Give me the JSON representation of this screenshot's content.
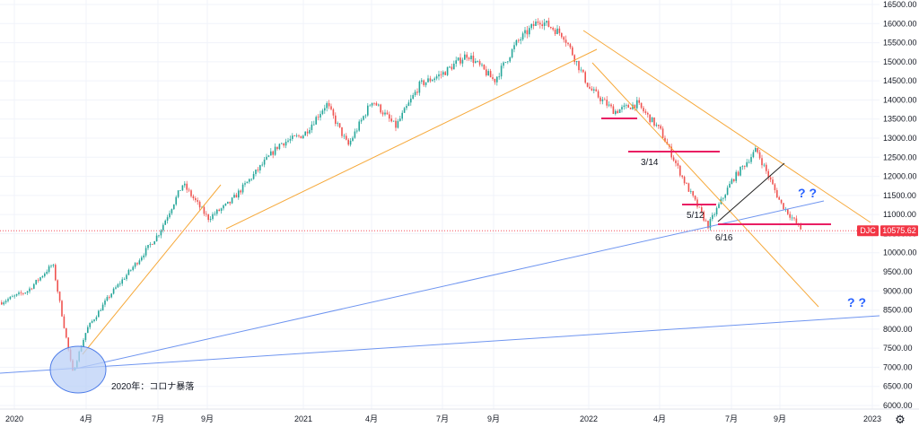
{
  "chart_data": {
    "type": "candlestick",
    "symbol": "DJC",
    "last_price": "10575.62",
    "colors": {
      "up": "#26a69a",
      "down": "#ef5350",
      "trend_orange": "#f6a93b",
      "trend_blue": "#6f95f0",
      "support_red": "#e91e63",
      "black_line": "#222222",
      "price_line": "#f23645",
      "grid": "#f0f3fa",
      "qmark": "#2962ff",
      "circle_fill": "#bbd0f7",
      "circle_stroke": "#4c7be8"
    },
    "y_axis": {
      "ticks": [
        "16500.00",
        "16000.00",
        "15500.00",
        "15000.00",
        "14500.00",
        "14000.00",
        "13500.00",
        "13000.00",
        "12500.00",
        "12000.00",
        "11500.00",
        "11000.00",
        "10500.00",
        "10000.00",
        "9500.00",
        "9000.00",
        "8500.00",
        "8000.00",
        "7500.00",
        "7000.00",
        "6500.00",
        "6000.00"
      ],
      "range": [
        6000,
        16500
      ]
    },
    "x_axis": {
      "labels": [
        "2020",
        "4月",
        "7月",
        "9月",
        "2021",
        "4月",
        "7月",
        "9月",
        "2022",
        "4月",
        "7月",
        "9月",
        "2023"
      ]
    },
    "series": [
      {
        "date": "2019-12",
        "value": 8700
      },
      {
        "date": "2020-01",
        "value": 9000
      },
      {
        "date": "2020-02",
        "value": 9700
      },
      {
        "date": "2020-03",
        "value": 6860
      },
      {
        "date": "2020-04",
        "value": 8000
      },
      {
        "date": "2020-05",
        "value": 8900
      },
      {
        "date": "2020-06",
        "value": 9700
      },
      {
        "date": "2020-07",
        "value": 10500
      },
      {
        "date": "2020-08",
        "value": 11800
      },
      {
        "date": "2020-09",
        "value": 10900
      },
      {
        "date": "2020-10",
        "value": 11300
      },
      {
        "date": "2020-11",
        "value": 12100
      },
      {
        "date": "2020-12",
        "value": 12850
      },
      {
        "date": "2021-01",
        "value": 13100
      },
      {
        "date": "2021-02",
        "value": 13900
      },
      {
        "date": "2021-03",
        "value": 12800
      },
      {
        "date": "2021-04",
        "value": 14000
      },
      {
        "date": "2021-05",
        "value": 13300
      },
      {
        "date": "2021-06",
        "value": 14400
      },
      {
        "date": "2021-07",
        "value": 14700
      },
      {
        "date": "2021-08",
        "value": 15200
      },
      {
        "date": "2021-09",
        "value": 14500
      },
      {
        "date": "2021-10",
        "value": 15500
      },
      {
        "date": "2021-11",
        "value": 16100
      },
      {
        "date": "2021-12",
        "value": 15700
      },
      {
        "date": "2022-01",
        "value": 14300
      },
      {
        "date": "2022-02",
        "value": 13700
      },
      {
        "date": "2022-03",
        "value": 13900
      },
      {
        "date": "2022-04",
        "value": 13200
      },
      {
        "date": "2022-05",
        "value": 11900
      },
      {
        "date": "2022-06",
        "value": 10700
      },
      {
        "date": "2022-07",
        "value": 11900
      },
      {
        "date": "2022-08",
        "value": 12700
      },
      {
        "date": "2022-09",
        "value": 11300
      },
      {
        "date": "2022-10",
        "value": 10575
      }
    ],
    "annotations": [
      {
        "text": "3/14"
      },
      {
        "text": "5/12"
      },
      {
        "text": "6/16"
      },
      {
        "text": "2020年：コロナ暴落"
      },
      {
        "text": "? ?"
      },
      {
        "text": "? ?"
      }
    ]
  },
  "ui": {
    "settings_icon": "gear-icon"
  }
}
